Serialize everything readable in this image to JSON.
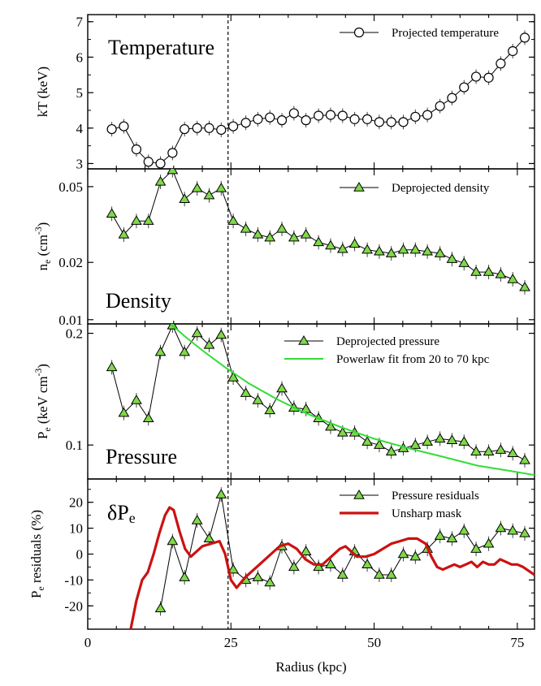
{
  "chart_data": [
    {
      "type": "line",
      "panel_label": "Temperature",
      "ylabel": "kT (keV)",
      "xlim": [
        0,
        78
      ],
      "ylim": [
        2.85,
        7.2
      ],
      "yticks": [
        3,
        4,
        5,
        6,
        7
      ],
      "marker": "open-circle",
      "series": [
        {
          "name": "Projected temperature",
          "color": "#000000",
          "x": [
            4.2,
            6.3,
            8.5,
            10.6,
            12.7,
            14.8,
            16.9,
            19.1,
            21.2,
            23.3,
            25.4,
            27.6,
            29.7,
            31.8,
            33.9,
            36.0,
            38.1,
            40.3,
            42.4,
            44.5,
            46.6,
            48.8,
            50.9,
            53.0,
            55.1,
            57.2,
            59.3,
            61.5,
            63.6,
            65.7,
            67.8,
            70.0,
            72.1,
            74.2,
            76.3
          ],
          "y": [
            3.97,
            4.05,
            3.4,
            3.05,
            3.0,
            3.3,
            3.97,
            4.0,
            4.0,
            3.95,
            4.05,
            4.15,
            4.25,
            4.3,
            4.22,
            4.42,
            4.22,
            4.35,
            4.37,
            4.35,
            4.25,
            4.25,
            4.17,
            4.17,
            4.17,
            4.32,
            4.37,
            4.62,
            4.85,
            5.15,
            5.45,
            5.42,
            5.82,
            6.17,
            6.55
          ]
        }
      ]
    },
    {
      "type": "line",
      "panel_label": "Density",
      "ylabel": "n_e (cm^-3)",
      "y_scale": "log",
      "xlim": [
        0,
        78
      ],
      "ylim": [
        0.0095,
        0.062
      ],
      "yticks": [
        0.01,
        0.02,
        0.05
      ],
      "ytick_labels": [
        "0.01",
        "0.02",
        "0.05"
      ],
      "marker": "filled-triangle",
      "series": [
        {
          "name": "Deprojected density",
          "color": "#7fd94a",
          "x": [
            4.2,
            6.3,
            8.5,
            10.6,
            12.7,
            14.8,
            16.9,
            19.1,
            21.2,
            23.3,
            25.4,
            27.6,
            29.7,
            31.8,
            33.9,
            36.0,
            38.1,
            40.3,
            42.4,
            44.5,
            46.6,
            48.8,
            50.9,
            53.0,
            55.1,
            57.2,
            59.3,
            61.5,
            63.6,
            65.7,
            67.8,
            70.0,
            72.1,
            74.2,
            76.3
          ],
          "y": [
            0.036,
            0.028,
            0.033,
            0.033,
            0.053,
            0.061,
            0.043,
            0.049,
            0.045,
            0.049,
            0.033,
            0.03,
            0.028,
            0.027,
            0.03,
            0.027,
            0.028,
            0.0255,
            0.0245,
            0.0235,
            0.025,
            0.0233,
            0.0228,
            0.0223,
            0.0233,
            0.0233,
            0.0228,
            0.0223,
            0.0208,
            0.0198,
            0.0178,
            0.0178,
            0.0173,
            0.0163,
            0.0148
          ]
        }
      ]
    },
    {
      "type": "line",
      "panel_label": "Pressure",
      "ylabel": "P_e (keV cm^-3)",
      "y_scale": "log",
      "xlim": [
        0,
        78
      ],
      "ylim": [
        0.081,
        0.212
      ],
      "yticks": [
        0.1,
        0.2
      ],
      "ytick_labels": [
        "0.1",
        "0.2"
      ],
      "marker": "filled-triangle",
      "series": [
        {
          "name": "Deprojected pressure",
          "color": "#7fd94a",
          "x": [
            4.2,
            6.3,
            8.5,
            10.6,
            12.7,
            14.8,
            16.9,
            19.1,
            21.2,
            23.3,
            25.4,
            27.6,
            29.7,
            31.8,
            33.9,
            36.0,
            38.1,
            40.3,
            42.4,
            44.5,
            46.6,
            48.8,
            50.9,
            53.0,
            55.1,
            57.2,
            59.3,
            61.5,
            63.6,
            65.7,
            67.8,
            70.0,
            72.1,
            74.2,
            76.3
          ],
          "y": [
            0.162,
            0.122,
            0.132,
            0.118,
            0.178,
            0.21,
            0.178,
            0.2,
            0.186,
            0.198,
            0.152,
            0.138,
            0.132,
            0.124,
            0.142,
            0.126,
            0.125,
            0.118,
            0.112,
            0.108,
            0.108,
            0.102,
            0.1,
            0.096,
            0.098,
            0.1,
            0.102,
            0.104,
            0.103,
            0.102,
            0.096,
            0.096,
            0.097,
            0.095,
            0.091
          ]
        },
        {
          "name": "Powerlaw fit from 20 to 70 kpc",
          "color": "#33dd33",
          "style": "curve",
          "x": [
            14.5,
            17,
            20,
            24,
            28,
            33,
            38,
            44,
            50,
            56,
            62,
            68,
            74,
            78
          ],
          "y": [
            0.212,
            0.196,
            0.18,
            0.162,
            0.147,
            0.133,
            0.122,
            0.112,
            0.104,
            0.098,
            0.093,
            0.088,
            0.085,
            0.083
          ]
        }
      ]
    },
    {
      "type": "line",
      "panel_label": "δP_e",
      "ylabel": "P_e residuals (%)",
      "xlabel": "Radius (kpc)",
      "xlim": [
        0,
        78
      ],
      "xticks": [
        0,
        25,
        50,
        75
      ],
      "ylim": [
        -29,
        29
      ],
      "yticks": [
        -20,
        -10,
        0,
        10,
        20
      ],
      "marker": "filled-triangle",
      "series": [
        {
          "name": "Pressure residuals",
          "color": "#7fd94a",
          "x": [
            12.7,
            14.8,
            16.9,
            19.1,
            21.2,
            23.3,
            25.4,
            27.6,
            29.7,
            31.8,
            33.9,
            36.0,
            38.1,
            40.3,
            42.4,
            44.5,
            46.6,
            48.8,
            50.9,
            53.0,
            55.1,
            57.2,
            59.3,
            61.5,
            63.6,
            65.7,
            67.8,
            70.0,
            72.1,
            74.2,
            76.3
          ],
          "y": [
            -21,
            5,
            -9,
            13,
            6,
            23,
            -6,
            -10,
            -9,
            -11,
            3,
            -5,
            1,
            -5,
            -4,
            -8,
            1,
            -4,
            -8,
            -8,
            0,
            -1,
            2,
            7,
            6,
            9,
            2,
            4,
            10,
            9,
            8
          ]
        },
        {
          "name": "Unsharp mask",
          "color": "#cc1111",
          "style": "curve",
          "x": [
            7.5,
            8.5,
            9.5,
            10.5,
            11.5,
            12.5,
            13.5,
            14.3,
            15.0,
            16.0,
            17.0,
            18.0,
            19.0,
            20.0,
            21.5,
            23.0,
            24.0,
            25.0,
            26.0,
            27.5,
            29.0,
            30.5,
            32.0,
            33.5,
            35.0,
            36.5,
            38.0,
            39.5,
            41.0,
            42.5,
            44.0,
            45.0,
            46.0,
            47.0,
            48.5,
            50.0,
            51.5,
            53.0,
            54.5,
            56.0,
            57.5,
            59.0,
            60.0,
            61.0,
            62.0,
            63.0,
            64.0,
            65.0,
            66.0,
            67.0,
            68.0,
            69.0,
            70.0,
            71.0,
            72.0,
            73.0,
            74.0,
            75.0,
            76.0,
            78.0
          ],
          "y": [
            -29,
            -18,
            -10,
            -7,
            0,
            8,
            15,
            18,
            17,
            9,
            2,
            -1,
            1,
            3,
            4,
            5,
            0,
            -10,
            -13,
            -9,
            -6,
            -3,
            0,
            3,
            4,
            2,
            -2,
            -4,
            -4,
            -1,
            2,
            3,
            1,
            -1,
            -1,
            0,
            2,
            4,
            5,
            6,
            6,
            4,
            -1,
            -5,
            -6,
            -5,
            -4,
            -5,
            -4,
            -3,
            -5,
            -3,
            -4,
            -4,
            -2,
            -3,
            -4,
            -4,
            -5,
            -8
          ]
        }
      ]
    }
  ]
}
